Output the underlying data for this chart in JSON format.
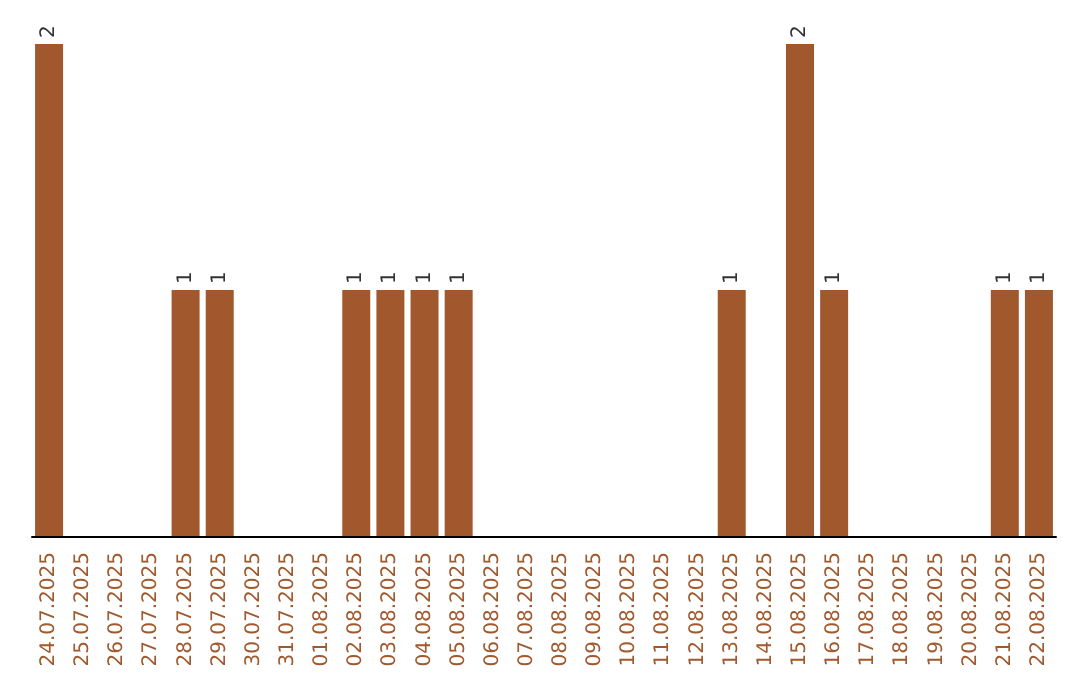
{
  "chart_data": {
    "type": "bar",
    "categories": [
      "24.07.2025",
      "25.07.2025",
      "26.07.2025",
      "27.07.2025",
      "28.07.2025",
      "29.07.2025",
      "30.07.2025",
      "31.07.2025",
      "01.08.2025",
      "02.08.2025",
      "03.08.2025",
      "04.08.2025",
      "05.08.2025",
      "06.08.2025",
      "07.08.2025",
      "08.08.2025",
      "09.08.2025",
      "10.08.2025",
      "11.08.2025",
      "12.08.2025",
      "13.08.2025",
      "14.08.2025",
      "15.08.2025",
      "16.08.2025",
      "17.08.2025",
      "18.08.2025",
      "19.08.2025",
      "20.08.2025",
      "21.08.2025",
      "22.08.2025"
    ],
    "values": [
      2,
      0,
      0,
      0,
      1,
      1,
      0,
      0,
      0,
      1,
      1,
      1,
      1,
      0,
      0,
      0,
      0,
      0,
      0,
      0,
      1,
      0,
      2,
      1,
      0,
      0,
      0,
      0,
      1,
      1
    ],
    "value_labels": [
      "2",
      null,
      null,
      null,
      "1",
      "1",
      null,
      null,
      null,
      "1",
      "1",
      "1",
      "1",
      null,
      null,
      null,
      null,
      null,
      null,
      null,
      "1",
      null,
      "2",
      "1",
      null,
      null,
      null,
      null,
      "1",
      "1"
    ],
    "color": "#a0582c",
    "tick_labels": "x"
  }
}
